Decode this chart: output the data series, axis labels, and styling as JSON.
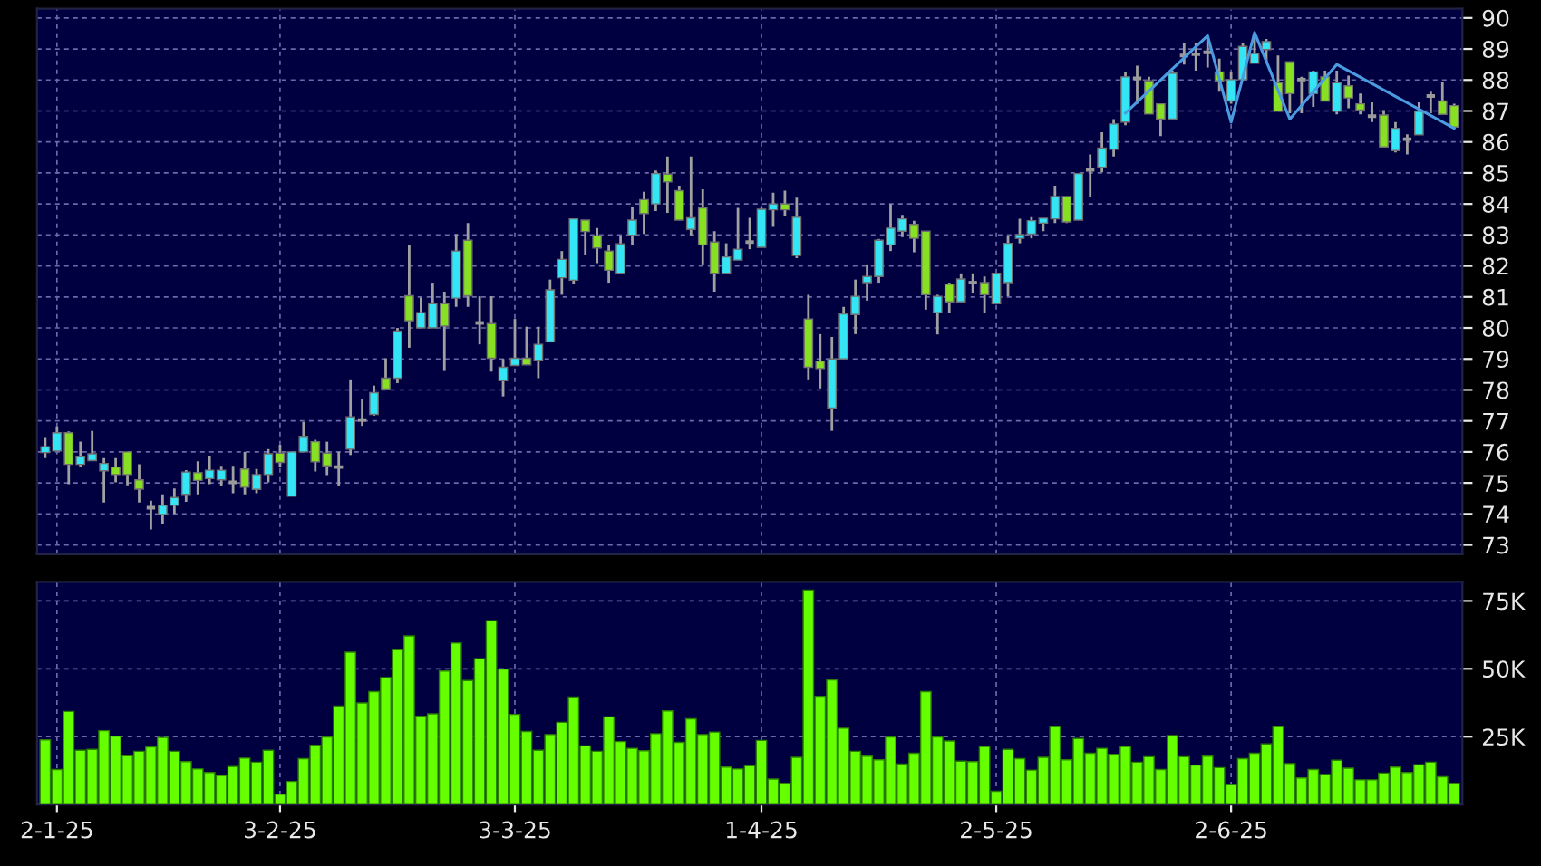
{
  "chart_data": [
    {
      "type": "candlestick",
      "tick_labels": "y",
      "grid": true,
      "ylim": [
        72.7,
        90.3
      ],
      "yticks": [
        73,
        74,
        75,
        76,
        77,
        78,
        79,
        80,
        81,
        82,
        83,
        84,
        85,
        86,
        87,
        88,
        89,
        90
      ],
      "categories": [
        null,
        null,
        null,
        null,
        null,
        null,
        null,
        null,
        null,
        null,
        null,
        null,
        null,
        null,
        null,
        null,
        null,
        null,
        null,
        null,
        null,
        null,
        null,
        null,
        null,
        null,
        null,
        null,
        null,
        null,
        null,
        null,
        null,
        null,
        null,
        null,
        null,
        null,
        null,
        null,
        null,
        null,
        null,
        null,
        null,
        null,
        null,
        null,
        null,
        null,
        null,
        null,
        null,
        null,
        null,
        null,
        null,
        null,
        null,
        null,
        null,
        null,
        null,
        null,
        null,
        null,
        null,
        null,
        null,
        null,
        null,
        null,
        null,
        null,
        null,
        null,
        null,
        null,
        null,
        null,
        null,
        null,
        null,
        null,
        null,
        null,
        null,
        null,
        null,
        null,
        null,
        null,
        null,
        null,
        null,
        null,
        null,
        null,
        null,
        null,
        null,
        null,
        null,
        null,
        null,
        null,
        null,
        null,
        null,
        null,
        null,
        null,
        null,
        null,
        null,
        null,
        null,
        null,
        null,
        null,
        null
      ],
      "ohlc": [
        [
          75.98,
          76.48,
          75.8,
          76.17
        ],
        [
          76.03,
          76.82,
          76.03,
          76.62
        ],
        [
          76.62,
          76.66,
          74.96,
          75.6
        ],
        [
          75.6,
          76.33,
          75.5,
          75.86
        ],
        [
          75.72,
          76.68,
          75.72,
          75.94
        ],
        [
          75.39,
          75.8,
          74.37,
          75.63
        ],
        [
          75.51,
          75.8,
          75.02,
          75.27
        ],
        [
          76.0,
          76.0,
          74.92,
          75.27
        ],
        [
          75.1,
          75.6,
          74.37,
          74.8
        ],
        [
          74.2,
          74.43,
          73.5,
          74.2
        ],
        [
          73.98,
          74.63,
          73.69,
          74.28
        ],
        [
          74.28,
          74.82,
          74.0,
          74.53
        ],
        [
          74.63,
          75.41,
          74.39,
          75.35
        ],
        [
          75.33,
          75.7,
          74.63,
          75.08
        ],
        [
          75.14,
          75.88,
          74.96,
          75.41
        ],
        [
          75.1,
          75.55,
          74.9,
          75.41
        ],
        [
          75.02,
          75.55,
          74.67,
          75.02
        ],
        [
          75.45,
          76.0,
          74.63,
          74.86
        ],
        [
          74.79,
          75.45,
          74.67,
          75.27
        ],
        [
          75.27,
          76.09,
          75.02,
          75.94
        ],
        [
          75.96,
          76.23,
          75.51,
          75.66
        ],
        [
          74.57,
          76.0,
          74.57,
          76.0
        ],
        [
          76.0,
          76.97,
          76.0,
          76.5
        ],
        [
          76.33,
          76.39,
          75.37,
          75.68
        ],
        [
          75.96,
          76.33,
          75.25,
          75.55
        ],
        [
          75.51,
          76.0,
          74.9,
          75.51
        ],
        [
          76.09,
          78.34,
          75.9,
          77.13
        ],
        [
          77.03,
          77.71,
          76.84,
          77.03
        ],
        [
          77.21,
          78.14,
          77.17,
          77.91
        ],
        [
          78.38,
          79.02,
          78.03,
          78.03
        ],
        [
          78.38,
          80.0,
          78.22,
          79.9
        ],
        [
          81.04,
          82.68,
          79.36,
          80.23
        ],
        [
          80.0,
          80.98,
          80.0,
          80.49
        ],
        [
          80.0,
          81.46,
          80.0,
          80.78
        ],
        [
          80.78,
          81.17,
          78.61,
          80.06
        ],
        [
          80.96,
          83.03,
          80.68,
          82.48
        ],
        [
          82.83,
          83.38,
          80.68,
          81.04
        ],
        [
          80.16,
          81.02,
          79.47,
          80.16
        ],
        [
          80.14,
          81.02,
          78.59,
          79.02
        ],
        [
          78.3,
          79.0,
          77.79,
          78.73
        ],
        [
          78.79,
          80.29,
          78.79,
          79.02
        ],
        [
          79.02,
          80.04,
          78.81,
          78.81
        ],
        [
          78.96,
          80.04,
          78.38,
          79.47
        ],
        [
          79.55,
          81.56,
          79.55,
          81.23
        ],
        [
          81.62,
          82.48,
          81.07,
          82.21
        ],
        [
          81.54,
          83.52,
          81.43,
          83.52
        ],
        [
          83.48,
          83.48,
          82.34,
          83.11
        ],
        [
          82.97,
          83.22,
          82.09,
          82.58
        ],
        [
          82.48,
          82.68,
          81.46,
          81.86
        ],
        [
          81.76,
          82.99,
          81.76,
          82.71
        ],
        [
          82.99,
          83.91,
          82.68,
          83.48
        ],
        [
          84.14,
          84.39,
          83.03,
          83.69
        ],
        [
          84.0,
          85.08,
          83.77,
          84.98
        ],
        [
          84.96,
          85.53,
          83.71,
          84.71
        ],
        [
          84.43,
          84.59,
          83.48,
          83.48
        ],
        [
          83.18,
          85.53,
          82.99,
          83.55
        ],
        [
          83.87,
          84.47,
          82.05,
          82.68
        ],
        [
          82.77,
          83.12,
          81.17,
          81.76
        ],
        [
          81.76,
          82.73,
          81.76,
          82.29
        ],
        [
          82.19,
          83.87,
          82.19,
          82.54
        ],
        [
          82.77,
          83.55,
          82.54,
          82.77
        ],
        [
          82.6,
          83.87,
          82.6,
          83.83
        ],
        [
          83.81,
          84.36,
          83.26,
          84.0
        ],
        [
          84.0,
          84.43,
          83.61,
          83.81
        ],
        [
          82.34,
          84.2,
          82.25,
          83.57
        ],
        [
          80.29,
          81.07,
          78.34,
          78.73
        ],
        [
          78.93,
          79.8,
          78.05,
          78.69
        ],
        [
          77.42,
          79.71,
          76.68,
          79.0
        ],
        [
          79.0,
          80.68,
          79.0,
          80.45
        ],
        [
          80.43,
          81.56,
          79.8,
          81.02
        ],
        [
          81.46,
          82.05,
          80.88,
          81.66
        ],
        [
          81.66,
          82.87,
          81.46,
          82.83
        ],
        [
          82.68,
          84.0,
          82.48,
          83.22
        ],
        [
          83.12,
          83.65,
          82.93,
          83.52
        ],
        [
          83.34,
          83.46,
          82.44,
          82.89
        ],
        [
          83.12,
          83.12,
          80.59,
          81.07
        ],
        [
          80.49,
          81.07,
          79.79,
          81.02
        ],
        [
          81.41,
          81.46,
          80.49,
          80.84
        ],
        [
          80.84,
          81.76,
          80.84,
          81.58
        ],
        [
          81.46,
          81.76,
          81.11,
          81.46
        ],
        [
          81.46,
          81.66,
          80.49,
          81.07
        ],
        [
          80.78,
          81.76,
          80.78,
          81.76
        ],
        [
          81.46,
          82.97,
          81.02,
          82.73
        ],
        [
          82.89,
          83.52,
          82.73,
          83.01
        ],
        [
          83.03,
          83.57,
          82.89,
          83.46
        ],
        [
          83.38,
          83.54,
          83.12,
          83.54
        ],
        [
          83.52,
          84.59,
          83.38,
          84.24
        ],
        [
          84.24,
          84.24,
          83.38,
          83.42
        ],
        [
          83.48,
          84.98,
          83.48,
          84.98
        ],
        [
          85.1,
          85.6,
          84.24,
          85.1
        ],
        [
          85.18,
          86.31,
          85.02,
          85.8
        ],
        [
          85.76,
          86.74,
          85.53,
          86.58
        ],
        [
          86.64,
          88.26,
          86.54,
          88.1
        ],
        [
          88.05,
          88.46,
          87.23,
          88.05
        ],
        [
          87.97,
          88.1,
          86.9,
          86.9
        ],
        [
          87.23,
          87.23,
          86.19,
          86.74
        ],
        [
          86.74,
          88.3,
          86.74,
          88.22
        ],
        [
          88.79,
          89.18,
          88.5,
          88.79
        ],
        [
          88.83,
          89.18,
          88.3,
          88.83
        ],
        [
          88.89,
          89.38,
          88.4,
          88.89
        ],
        [
          88.26,
          88.69,
          87.62,
          87.97
        ],
        [
          87.32,
          88.26,
          87.23,
          88.01
        ],
        [
          88.01,
          89.18,
          88.01,
          89.08
        ],
        [
          88.54,
          89.47,
          88.54,
          88.85
        ],
        [
          88.98,
          89.32,
          88.54,
          89.24
        ],
        [
          87.91,
          88.79,
          86.99,
          86.99
        ],
        [
          88.59,
          88.59,
          86.93,
          87.56
        ],
        [
          88.01,
          88.1,
          86.93,
          88.01
        ],
        [
          87.56,
          88.3,
          87.13,
          88.26
        ],
        [
          88.1,
          88.3,
          87.32,
          87.32
        ],
        [
          86.99,
          88.3,
          86.89,
          87.91
        ],
        [
          87.81,
          88.14,
          87.09,
          87.42
        ],
        [
          87.23,
          87.56,
          86.89,
          87.03
        ],
        [
          86.83,
          87.28,
          86.64,
          86.83
        ],
        [
          86.87,
          87.03,
          85.84,
          85.84
        ],
        [
          85.72,
          86.64,
          85.66,
          86.44
        ],
        [
          86.09,
          86.25,
          85.6,
          86.09
        ],
        [
          86.23,
          87.28,
          86.23,
          86.99
        ],
        [
          87.48,
          87.62,
          86.93,
          87.48
        ],
        [
          87.32,
          87.95,
          86.89,
          86.89
        ],
        [
          87.17,
          87.23,
          86.48,
          86.48
        ]
      ],
      "colors": [
        "#33e5f5",
        "#33e5f5",
        "#88e022",
        "#33e5f5",
        "#33e5f5",
        "#33e5f5",
        "#88e022",
        "#88e022",
        "#88e022",
        "#9a9a9a",
        "#33e5f5",
        "#33e5f5",
        "#33e5f5",
        "#88e022",
        "#33e5f5",
        "#33e5f5",
        "#9a9a9a",
        "#88e022",
        "#33e5f5",
        "#33e5f5",
        "#88e022",
        "#33e5f5",
        "#33e5f5",
        "#88e022",
        "#88e022",
        "#9a9a9a",
        "#33e5f5",
        "#9a9a9a",
        "#33e5f5",
        "#88e022",
        "#33e5f5",
        "#88e022",
        "#33e5f5",
        "#33e5f5",
        "#88e022",
        "#33e5f5",
        "#88e022",
        "#9a9a9a",
        "#88e022",
        "#33e5f5",
        "#33e5f5",
        "#88e022",
        "#33e5f5",
        "#33e5f5",
        "#33e5f5",
        "#33e5f5",
        "#88e022",
        "#88e022",
        "#88e022",
        "#33e5f5",
        "#33e5f5",
        "#88e022",
        "#33e5f5",
        "#88e022",
        "#88e022",
        "#33e5f5",
        "#88e022",
        "#88e022",
        "#33e5f5",
        "#33e5f5",
        "#9a9a9a",
        "#33e5f5",
        "#33e5f5",
        "#88e022",
        "#33e5f5",
        "#88e022",
        "#88e022",
        "#33e5f5",
        "#33e5f5",
        "#33e5f5",
        "#33e5f5",
        "#33e5f5",
        "#33e5f5",
        "#33e5f5",
        "#88e022",
        "#88e022",
        "#33e5f5",
        "#88e022",
        "#33e5f5",
        "#9a9a9a",
        "#88e022",
        "#33e5f5",
        "#33e5f5",
        "#33e5f5",
        "#33e5f5",
        "#33e5f5",
        "#33e5f5",
        "#88e022",
        "#33e5f5",
        "#9a9a9a",
        "#33e5f5",
        "#33e5f5",
        "#33e5f5",
        "#9a9a9a",
        "#88e022",
        "#88e022",
        "#33e5f5",
        "#9a9a9a",
        "#9a9a9a",
        "#9a9a9a",
        "#88e022",
        "#33e5f5",
        "#33e5f5",
        "#33e5f5",
        "#33e5f5",
        "#88e022",
        "#88e022",
        "#9a9a9a",
        "#33e5f5",
        "#88e022",
        "#33e5f5",
        "#88e022",
        "#88e022",
        "#9a9a9a",
        "#88e022",
        "#33e5f5",
        "#9a9a9a",
        "#33e5f5",
        "#9a9a9a",
        "#88e022",
        "#88e022"
      ],
      "series": [
        {
          "type": "line",
          "color": "#4a9be0",
          "values": [
            null,
            null,
            null,
            null,
            null,
            null,
            null,
            null,
            null,
            null,
            null,
            null,
            null,
            null,
            null,
            null,
            null,
            null,
            null,
            null,
            null,
            null,
            null,
            null,
            null,
            null,
            null,
            null,
            null,
            null,
            null,
            null,
            null,
            null,
            null,
            null,
            null,
            null,
            null,
            null,
            null,
            null,
            null,
            null,
            null,
            null,
            null,
            null,
            null,
            null,
            null,
            null,
            null,
            null,
            null,
            null,
            null,
            null,
            null,
            null,
            null,
            null,
            null,
            null,
            null,
            null,
            null,
            null,
            null,
            null,
            null,
            null,
            null,
            null,
            null,
            null,
            null,
            null,
            null,
            null,
            null,
            null,
            null,
            null,
            null,
            null,
            null,
            null,
            null,
            null,
            null,
            null,
            86.93,
            null,
            null,
            null,
            null,
            null,
            null,
            89.43,
            null,
            86.64,
            null,
            89.53,
            null,
            null,
            86.74,
            null,
            null,
            null,
            88.5,
            null,
            null,
            null,
            null,
            null,
            null,
            null,
            null,
            null,
            86.44
          ]
        }
      ]
    },
    {
      "type": "bar",
      "grid": true,
      "color": "#66ff00",
      "ylim": [
        0,
        82000
      ],
      "yticks": [
        {
          "value": 25000,
          "label": "25K"
        },
        {
          "value": 50000,
          "label": "50K"
        },
        {
          "value": 75000,
          "label": "75K"
        }
      ],
      "categories": [
        null,
        "2-1-25",
        null,
        null,
        null,
        null,
        null,
        null,
        null,
        null,
        null,
        null,
        null,
        null,
        null,
        null,
        null,
        null,
        null,
        null,
        "3-2-25",
        null,
        null,
        null,
        null,
        null,
        null,
        null,
        null,
        null,
        null,
        null,
        null,
        null,
        null,
        null,
        null,
        null,
        null,
        null,
        "3-3-25",
        null,
        null,
        null,
        null,
        null,
        null,
        null,
        null,
        null,
        null,
        null,
        null,
        null,
        null,
        null,
        null,
        null,
        null,
        null,
        null,
        "1-4-25",
        null,
        null,
        null,
        null,
        null,
        null,
        null,
        null,
        null,
        null,
        null,
        null,
        null,
        null,
        null,
        null,
        null,
        null,
        null,
        "2-5-25",
        null,
        null,
        null,
        null,
        null,
        null,
        null,
        null,
        null,
        null,
        null,
        null,
        null,
        null,
        null,
        null,
        null,
        null,
        null,
        "2-6-25",
        null,
        null,
        null,
        null,
        null,
        null,
        null,
        null,
        null,
        null,
        null,
        null,
        null,
        null,
        null,
        null,
        null,
        null,
        null
      ],
      "values": [
        23800,
        12900,
        34300,
        20000,
        20300,
        27200,
        25200,
        18000,
        19600,
        21200,
        24700,
        19600,
        15800,
        13100,
        11800,
        10700,
        14000,
        17100,
        15600,
        20000,
        3800,
        8500,
        16900,
        21800,
        24900,
        36300,
        56100,
        37400,
        41600,
        46800,
        57000,
        62100,
        32500,
        33400,
        49200,
        59500,
        45700,
        53700,
        67700,
        49900,
        33200,
        26900,
        20000,
        25800,
        30300,
        39600,
        21600,
        19600,
        32300,
        23200,
        20700,
        19800,
        26100,
        34500,
        22900,
        31600,
        25800,
        26700,
        13800,
        13100,
        14300,
        23600,
        9400,
        7800,
        17400,
        79000,
        39900,
        45900,
        28100,
        19600,
        17800,
        16500,
        24900,
        14900,
        18900,
        41600,
        24900,
        23400,
        16000,
        15800,
        21400,
        4900,
        20300,
        16900,
        12700,
        17400,
        28700,
        16500,
        24300,
        18900,
        20700,
        18500,
        21400,
        15600,
        17600,
        12900,
        25400,
        17600,
        14500,
        17800,
        13600,
        7300,
        16900,
        18900,
        22300,
        28700,
        15100,
        9800,
        12900,
        11100,
        16300,
        13400,
        9100,
        9100,
        11600,
        13800,
        11800,
        14700,
        15600,
        10200,
        7800
      ]
    }
  ]
}
